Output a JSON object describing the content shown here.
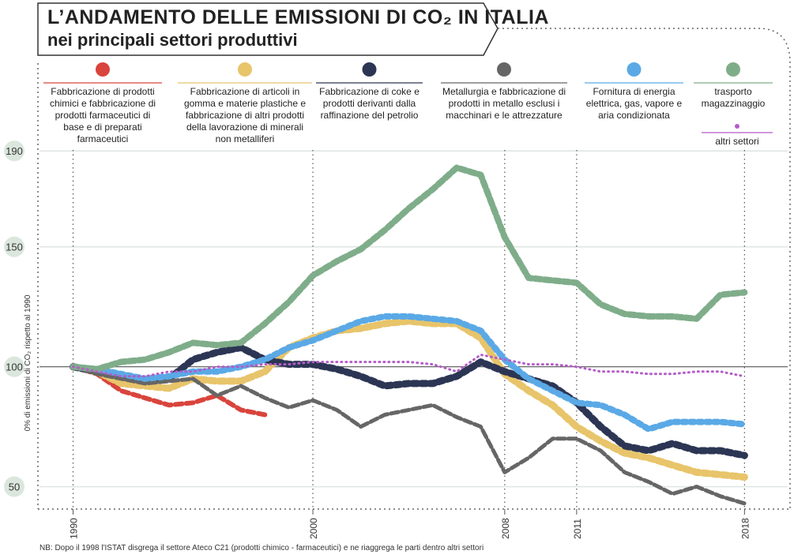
{
  "chart_data": {
    "type": "line",
    "title": "L’ANDAMENTO DELLE EMISSIONI DI CO₂ IN ITALIA",
    "subtitle": "nei principali settori produttivi",
    "y_label": "0% di emissioni di CO₂ rispetto al 1990",
    "note": "NB: Dopo il 1998 l'ISTAT disgrega il settore Ateco C21 (prodotti chimico - farmaceutici) e ne riaggrega le parti dentro altri settori",
    "x": [
      1990,
      1991,
      1992,
      1993,
      1994,
      1995,
      1996,
      1997,
      1998,
      1999,
      2000,
      2001,
      2002,
      2003,
      2004,
      2005,
      2006,
      2007,
      2008,
      2009,
      2010,
      2011,
      2012,
      2013,
      2014,
      2015,
      2016,
      2017,
      2018
    ],
    "xlim": [
      1988.6,
      2019.8
    ],
    "xticks": [
      1990,
      2000,
      2008,
      2011,
      2018
    ],
    "ylim": [
      40,
      195
    ],
    "yticks": [
      50,
      100,
      150,
      190
    ],
    "grid": true,
    "series": [
      {
        "name": "Fabbricazione di prodotti chimici e fabbricazione di prodotti farmaceutici di base e di preparati farmaceutici",
        "color": "#d9443c",
        "values": [
          100,
          97,
          90,
          87,
          84,
          85,
          88,
          82,
          80,
          null,
          null,
          null,
          null,
          null,
          null,
          null,
          null,
          null,
          null,
          null,
          null,
          null,
          null,
          null,
          null,
          null,
          null,
          null,
          null
        ]
      },
      {
        "name": "Fabbricazione di articoli in gomma e materie plastiche e fabbricazione di altri prodotti della lavorazione di minerali non metalliferi",
        "color": "#e8c46a",
        "values": [
          100,
          98,
          93,
          92,
          91,
          95,
          94,
          94,
          98,
          108,
          112,
          115,
          116,
          118,
          119,
          118,
          118,
          112,
          97,
          90,
          84,
          75,
          69,
          64,
          62,
          59,
          56,
          55,
          54
        ]
      },
      {
        "name": "Fabbricazione di coke e prodotti derivanti dalla raffinazione del petrolio",
        "color": "#2c3654",
        "values": [
          100,
          98,
          96,
          94,
          95,
          103,
          106,
          108,
          103,
          101,
          101,
          99,
          96,
          92,
          93,
          93,
          96,
          102,
          98,
          95,
          92,
          85,
          75,
          67,
          65,
          68,
          65,
          65,
          63
        ]
      },
      {
        "name": "Metallurgia e fabbricazione di prodotti in metallo esclusi i macchinari e le attrezzature",
        "color": "#666666",
        "values": [
          100,
          97,
          95,
          93,
          94,
          95,
          88,
          92,
          87,
          83,
          86,
          82,
          75,
          80,
          82,
          84,
          79,
          75,
          56,
          62,
          70,
          70,
          65,
          56,
          52,
          47,
          50,
          46,
          43
        ]
      },
      {
        "name": "Fornitura di energia elettrica, gas, vapore e aria condizionata",
        "color": "#5aa9e6",
        "values": [
          100,
          99,
          97,
          95,
          96,
          98,
          98,
          100,
          103,
          108,
          111,
          115,
          119,
          121,
          121,
          120,
          119,
          115,
          103,
          95,
          90,
          85,
          84,
          80,
          74,
          77,
          77,
          77,
          76
        ]
      },
      {
        "name": "trasporto magazzinaggio",
        "color": "#7fad8a",
        "values": [
          100,
          99,
          102,
          103,
          106,
          110,
          109,
          110,
          118,
          127,
          138,
          144,
          149,
          157,
          166,
          174,
          183,
          180,
          154,
          137,
          136,
          135,
          126,
          122,
          121,
          121,
          120,
          130,
          131
        ]
      },
      {
        "name": "altri settori",
        "color": "#b45cc8",
        "values": [
          100,
          98,
          96,
          96,
          98,
          98,
          100,
          100,
          101,
          101,
          102,
          102,
          102,
          102,
          102,
          101,
          98,
          105,
          103,
          101,
          101,
          100,
          98,
          98,
          97,
          97,
          98,
          98,
          96
        ]
      }
    ]
  }
}
